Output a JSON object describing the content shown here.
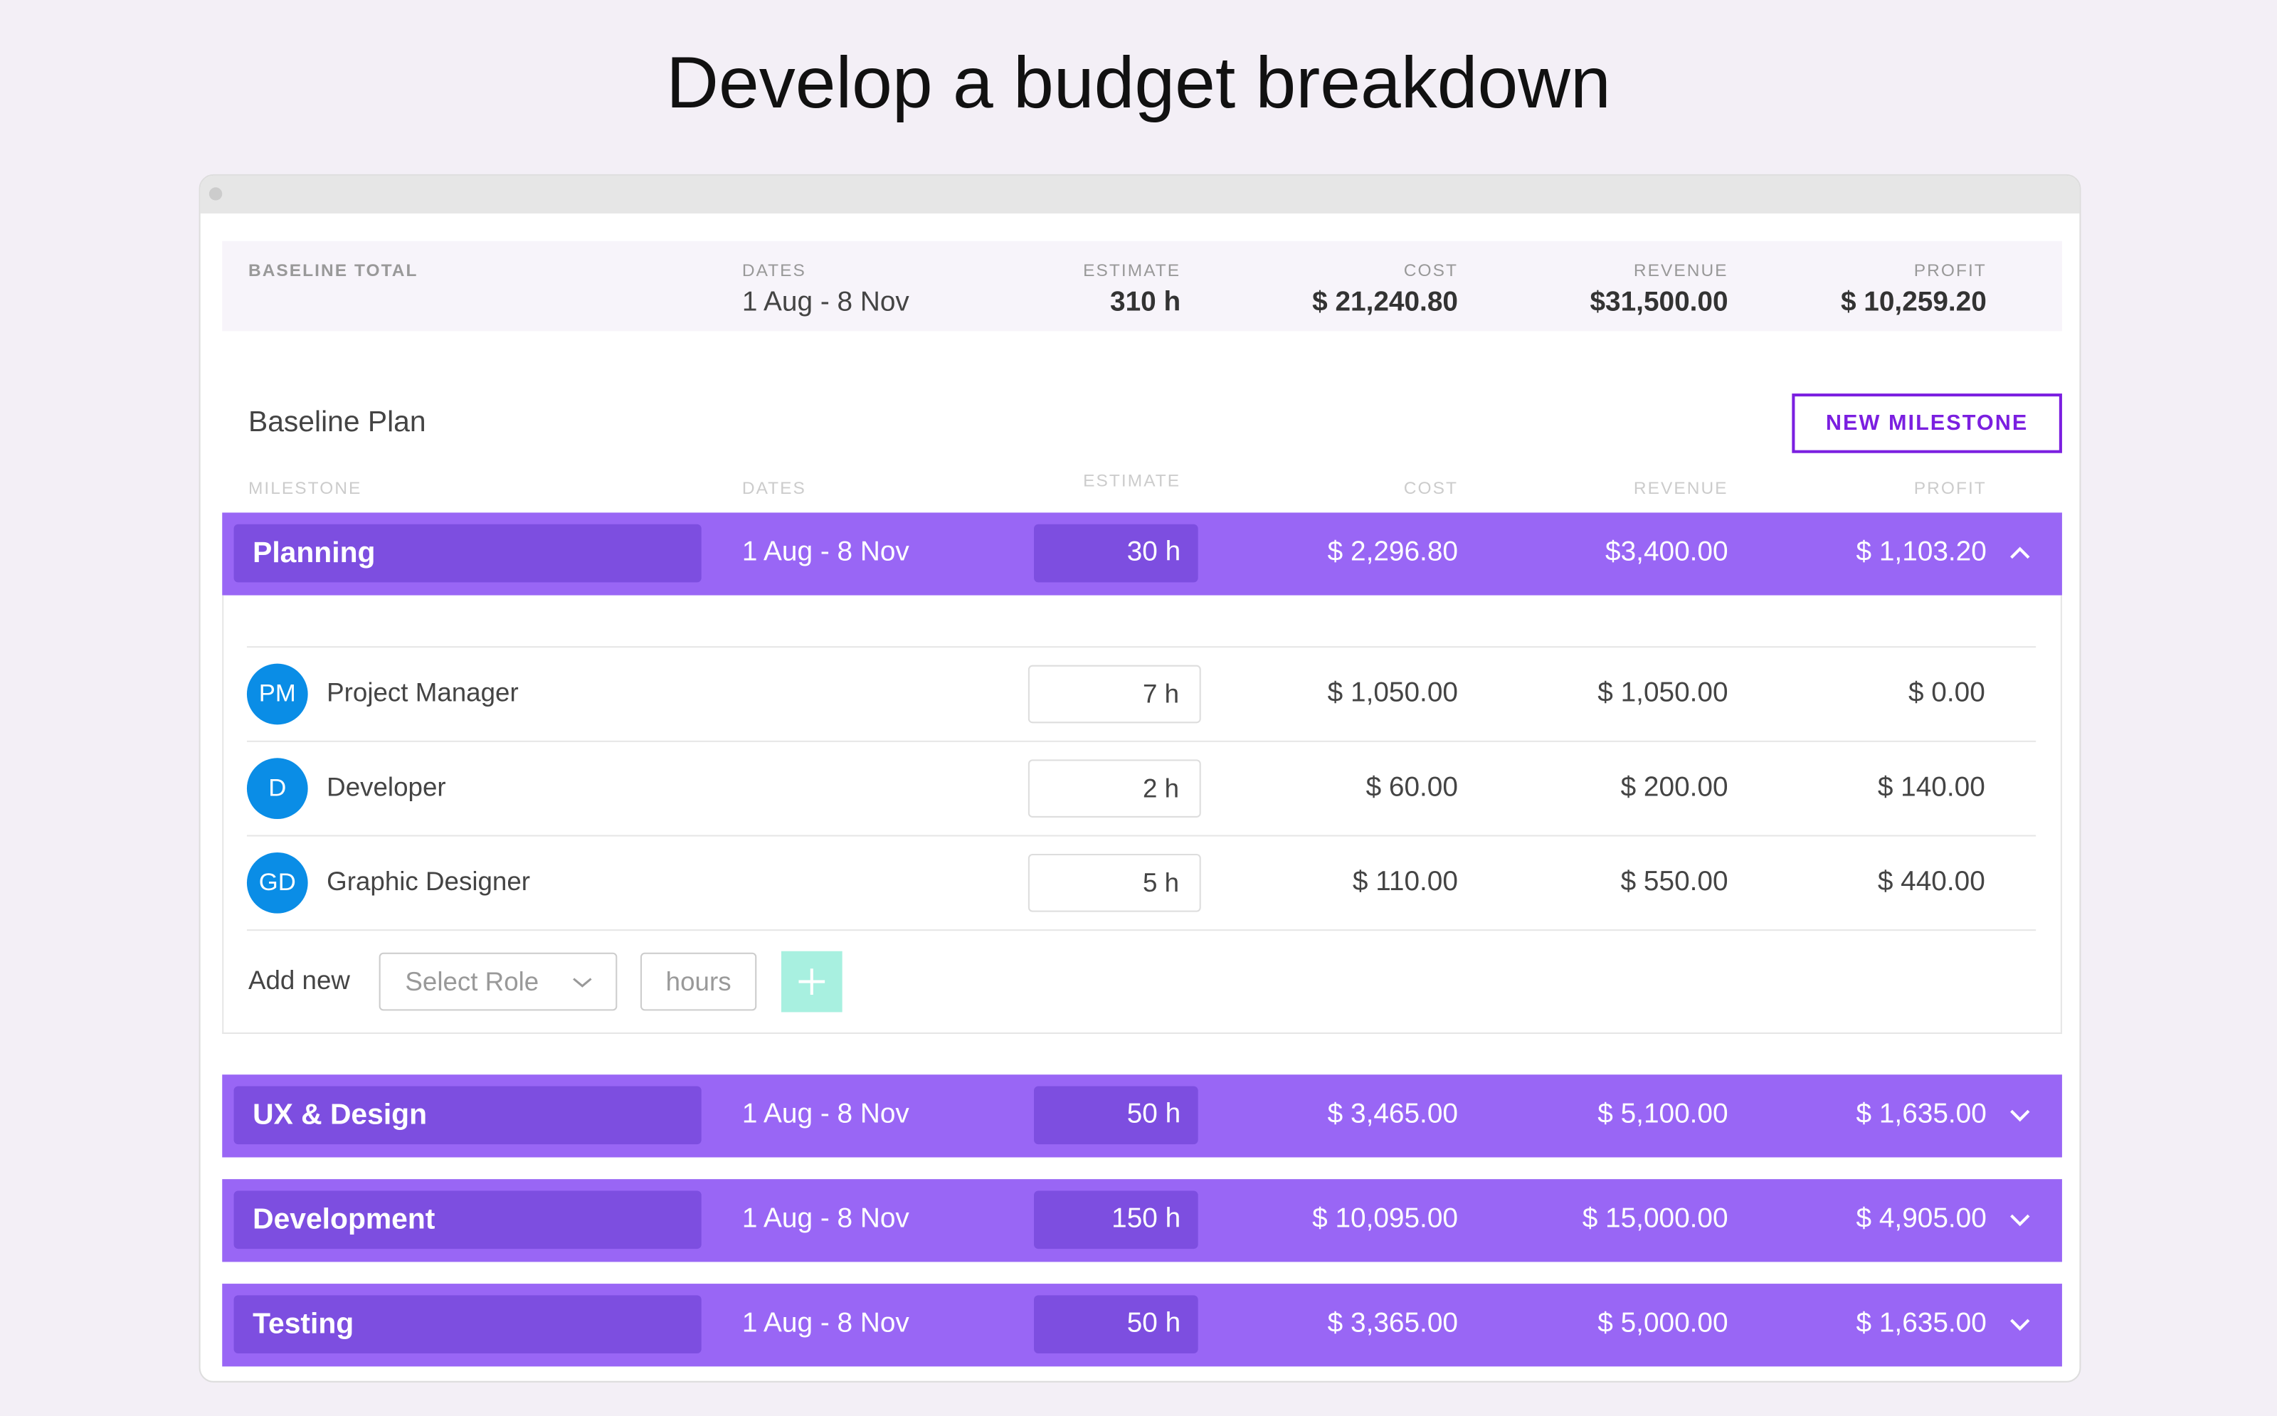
{
  "title": "Develop a budget breakdown",
  "summary": {
    "label": "BASELINE TOTAL",
    "dates_label": "DATES",
    "dates": "1 Aug - 8 Nov",
    "estimate_label": "ESTIMATE",
    "estimate": "310 h",
    "cost_label": "COST",
    "cost": "$ 21,240.80",
    "revenue_label": "REVENUE",
    "revenue": "$31,500.00",
    "profit_label": "PROFIT",
    "profit": "$ 10,259.20"
  },
  "plan": {
    "title": "Baseline Plan",
    "button": "NEW MILESTONE",
    "columns": [
      "MILESTONE",
      "DATES",
      "ESTIMATE",
      "COST",
      "REVENUE",
      "PROFIT"
    ]
  },
  "milestones": [
    {
      "name": "Planning",
      "dates": "1 Aug - 8 Nov",
      "estimate": "30 h",
      "cost": "$ 2,296.80",
      "revenue": "$3,400.00",
      "profit": "$ 1,103.20",
      "expanded": true,
      "roles": [
        {
          "initials": "PM",
          "name": "Project Manager",
          "hours": "7 h",
          "cost": "$ 1,050.00",
          "revenue": "$ 1,050.00",
          "profit": "$ 0.00"
        },
        {
          "initials": "D",
          "name": "Developer",
          "hours": "2 h",
          "cost": "$ 60.00",
          "revenue": "$ 200.00",
          "profit": "$ 140.00"
        },
        {
          "initials": "GD",
          "name": "Graphic Designer",
          "hours": "5 h",
          "cost": "$ 110.00",
          "revenue": "$ 550.00",
          "profit": "$ 440.00"
        }
      ]
    },
    {
      "name": "UX & Design",
      "dates": "1 Aug - 8 Nov",
      "estimate": "50 h",
      "cost": "$ 3,465.00",
      "revenue": "$ 5,100.00",
      "profit": "$ 1,635.00",
      "expanded": false
    },
    {
      "name": "Development",
      "dates": "1 Aug - 8 Nov",
      "estimate": "150 h",
      "cost": "$ 10,095.00",
      "revenue": "$ 15,000.00",
      "profit": "$ 4,905.00",
      "expanded": false
    },
    {
      "name": "Testing",
      "dates": "1 Aug - 8 Nov",
      "estimate": "50 h",
      "cost": "$ 3,365.00",
      "revenue": "$ 5,000.00",
      "profit": "$ 1,635.00",
      "expanded": false
    }
  ],
  "add_new": {
    "label": "Add new",
    "role_placeholder": "Select Role",
    "hours_placeholder": "hours"
  }
}
